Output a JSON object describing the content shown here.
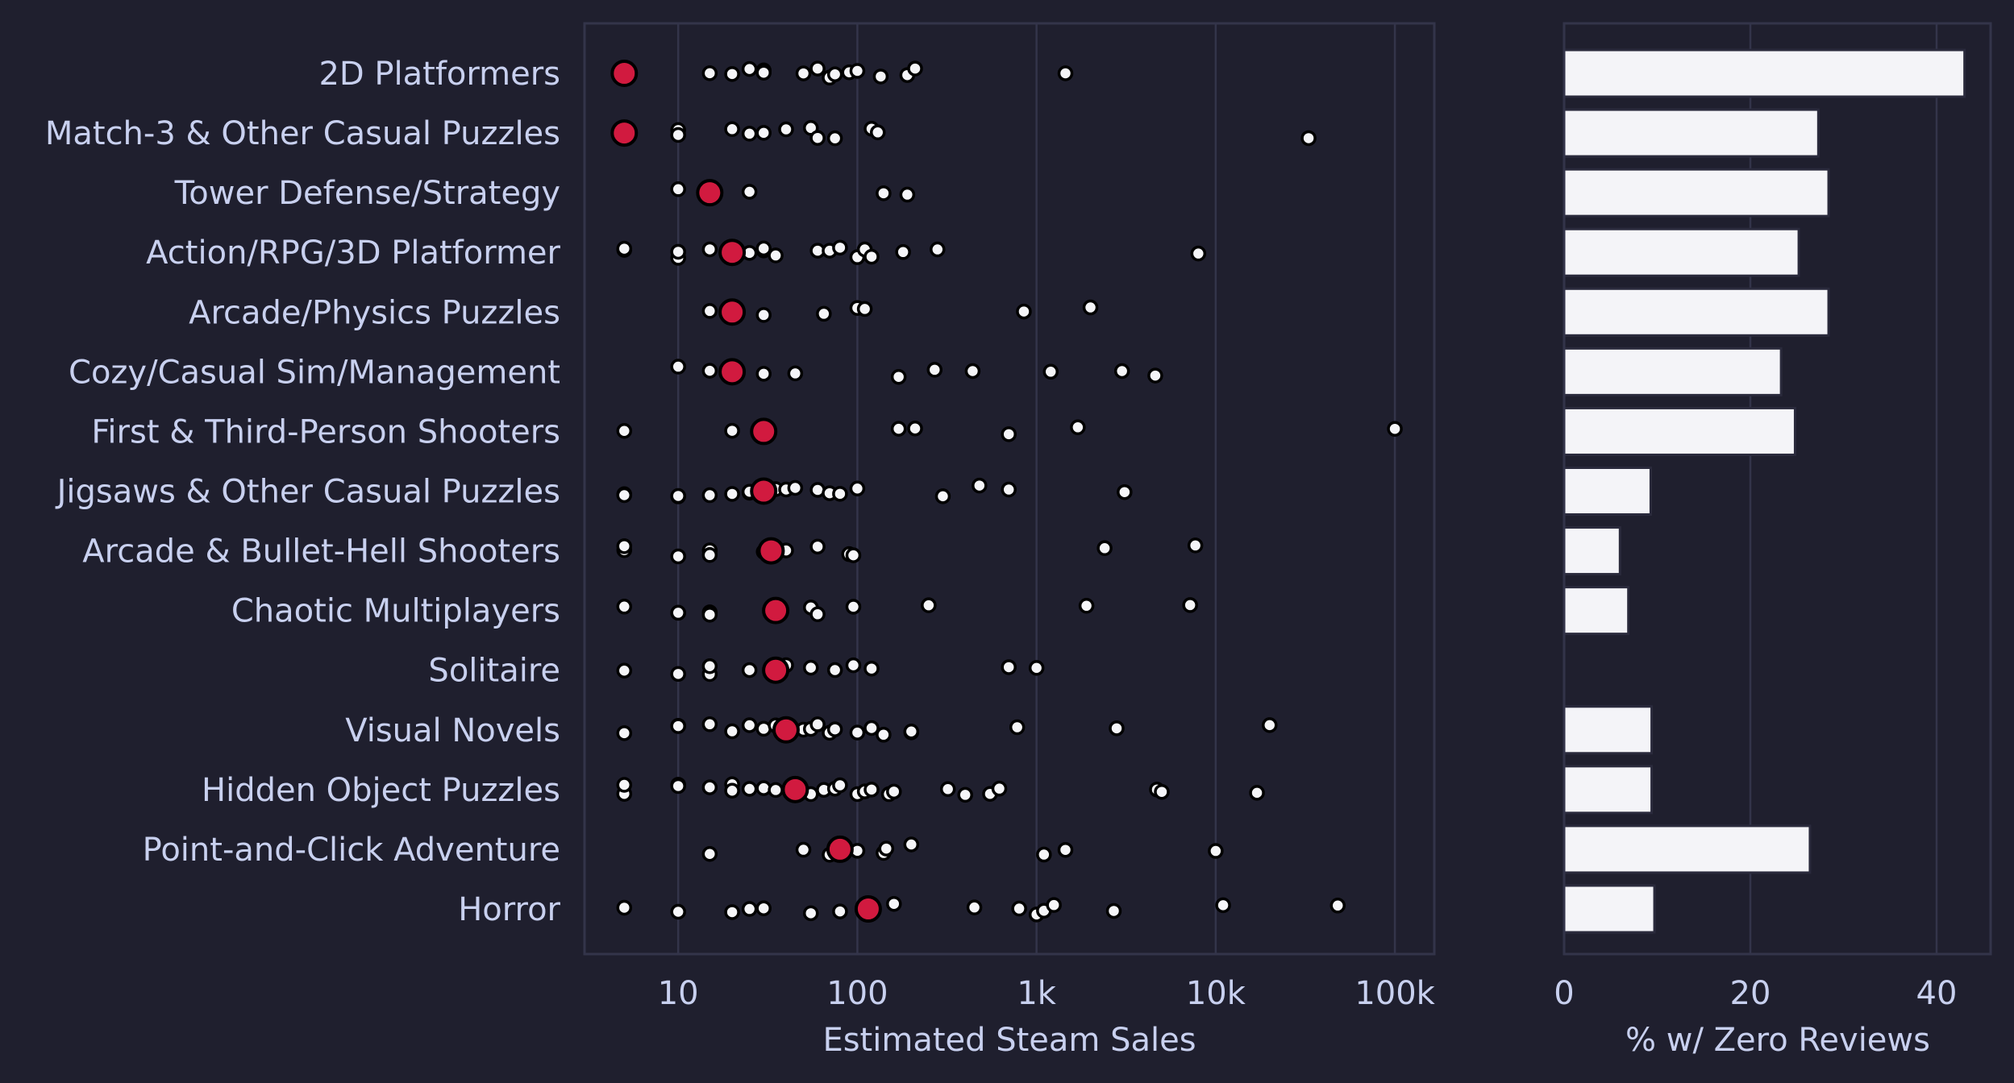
{
  "colors": {
    "background": "#1f1f2e",
    "text": "#c8d0ef",
    "grid": "#33344a",
    "point": "#f5f5f8",
    "median": "#d11a3f",
    "bar": "#f4f4f8"
  },
  "chart_data": [
    {
      "type": "scatter",
      "xlabel": "Estimated Steam Sales",
      "xscale": "log",
      "xlim": [
        3,
        166000
      ],
      "xticks": [
        10,
        100,
        1000,
        10000,
        100000
      ],
      "xtick_labels": [
        "10",
        "100",
        "1k",
        "10k",
        "100k"
      ],
      "grid": "vertical",
      "median_marker": "red",
      "categories": [
        "2D Platformers",
        "Match-3 & Other Casual Puzzles",
        "Tower Defense/Strategy",
        "Action/RPG/3D Platformer",
        "Arcade/Physics Puzzles",
        "Cozy/Casual Sim/Management",
        "First & Third-Person Shooters",
        "Jigsaws & Other Casual Puzzles",
        "Arcade & Bullet-Hell Shooters",
        "Chaotic Multiplayers",
        "Solitaire",
        "Visual Novels",
        "Hidden Object Puzzles",
        "Point-and-Click Adventure",
        "Horror"
      ],
      "medians": [
        5,
        5,
        15,
        20,
        20,
        20,
        30,
        30,
        33,
        35,
        35,
        40,
        45,
        80,
        115
      ],
      "points": [
        [
          15,
          20,
          25,
          30,
          30,
          50,
          60,
          70,
          75,
          90,
          100,
          135,
          190,
          210,
          1450
        ],
        [
          10,
          10,
          20,
          25,
          30,
          40,
          55,
          60,
          75,
          120,
          130,
          33000
        ],
        [
          10,
          25,
          140,
          190
        ],
        [
          5,
          5,
          10,
          10,
          15,
          25,
          30,
          30,
          35,
          60,
          70,
          80,
          100,
          110,
          120,
          180,
          280,
          8000
        ],
        [
          15,
          30,
          65,
          100,
          110,
          850,
          2000
        ],
        [
          10,
          15,
          30,
          45,
          170,
          270,
          440,
          1200,
          3000,
          4600
        ],
        [
          5,
          20,
          170,
          210,
          700,
          1700,
          100000
        ],
        [
          5,
          5,
          10,
          10,
          15,
          20,
          25,
          25,
          30,
          35,
          40,
          45,
          60,
          70,
          80,
          100,
          300,
          480,
          700,
          3100
        ],
        [
          5,
          5,
          10,
          15,
          15,
          30,
          40,
          60,
          90,
          95,
          2400,
          7700
        ],
        [
          5,
          10,
          10,
          15,
          15,
          55,
          60,
          95,
          250,
          1900,
          7200
        ],
        [
          5,
          10,
          15,
          15,
          25,
          40,
          55,
          75,
          95,
          120,
          700,
          1000
        ],
        [
          5,
          10,
          10,
          15,
          20,
          25,
          30,
          35,
          50,
          55,
          60,
          70,
          75,
          100,
          120,
          140,
          200,
          200,
          780,
          2800,
          20000
        ],
        [
          5,
          5,
          10,
          10,
          15,
          20,
          20,
          25,
          30,
          35,
          55,
          65,
          75,
          80,
          100,
          110,
          120,
          150,
          160,
          320,
          400,
          550,
          620,
          4700,
          5000,
          17000
        ],
        [
          15,
          50,
          70,
          100,
          140,
          145,
          200,
          1100,
          1450,
          10000
        ],
        [
          5,
          10,
          20,
          25,
          30,
          55,
          80,
          160,
          450,
          800,
          1000,
          1100,
          1250,
          2700,
          11000,
          48000
        ]
      ]
    },
    {
      "type": "bar",
      "orientation": "horizontal",
      "xlabel": "% w/ Zero Reviews",
      "xlim": [
        0,
        45.8
      ],
      "xticks": [
        0,
        20,
        40
      ],
      "xtick_labels": [
        "0",
        "20",
        "40"
      ],
      "grid": "vertical",
      "values": [
        43.0,
        27.3,
        28.4,
        25.2,
        28.4,
        23.3,
        24.8,
        9.3,
        6.0,
        6.9,
        0,
        9.4,
        9.4,
        26.4,
        9.7
      ]
    }
  ]
}
